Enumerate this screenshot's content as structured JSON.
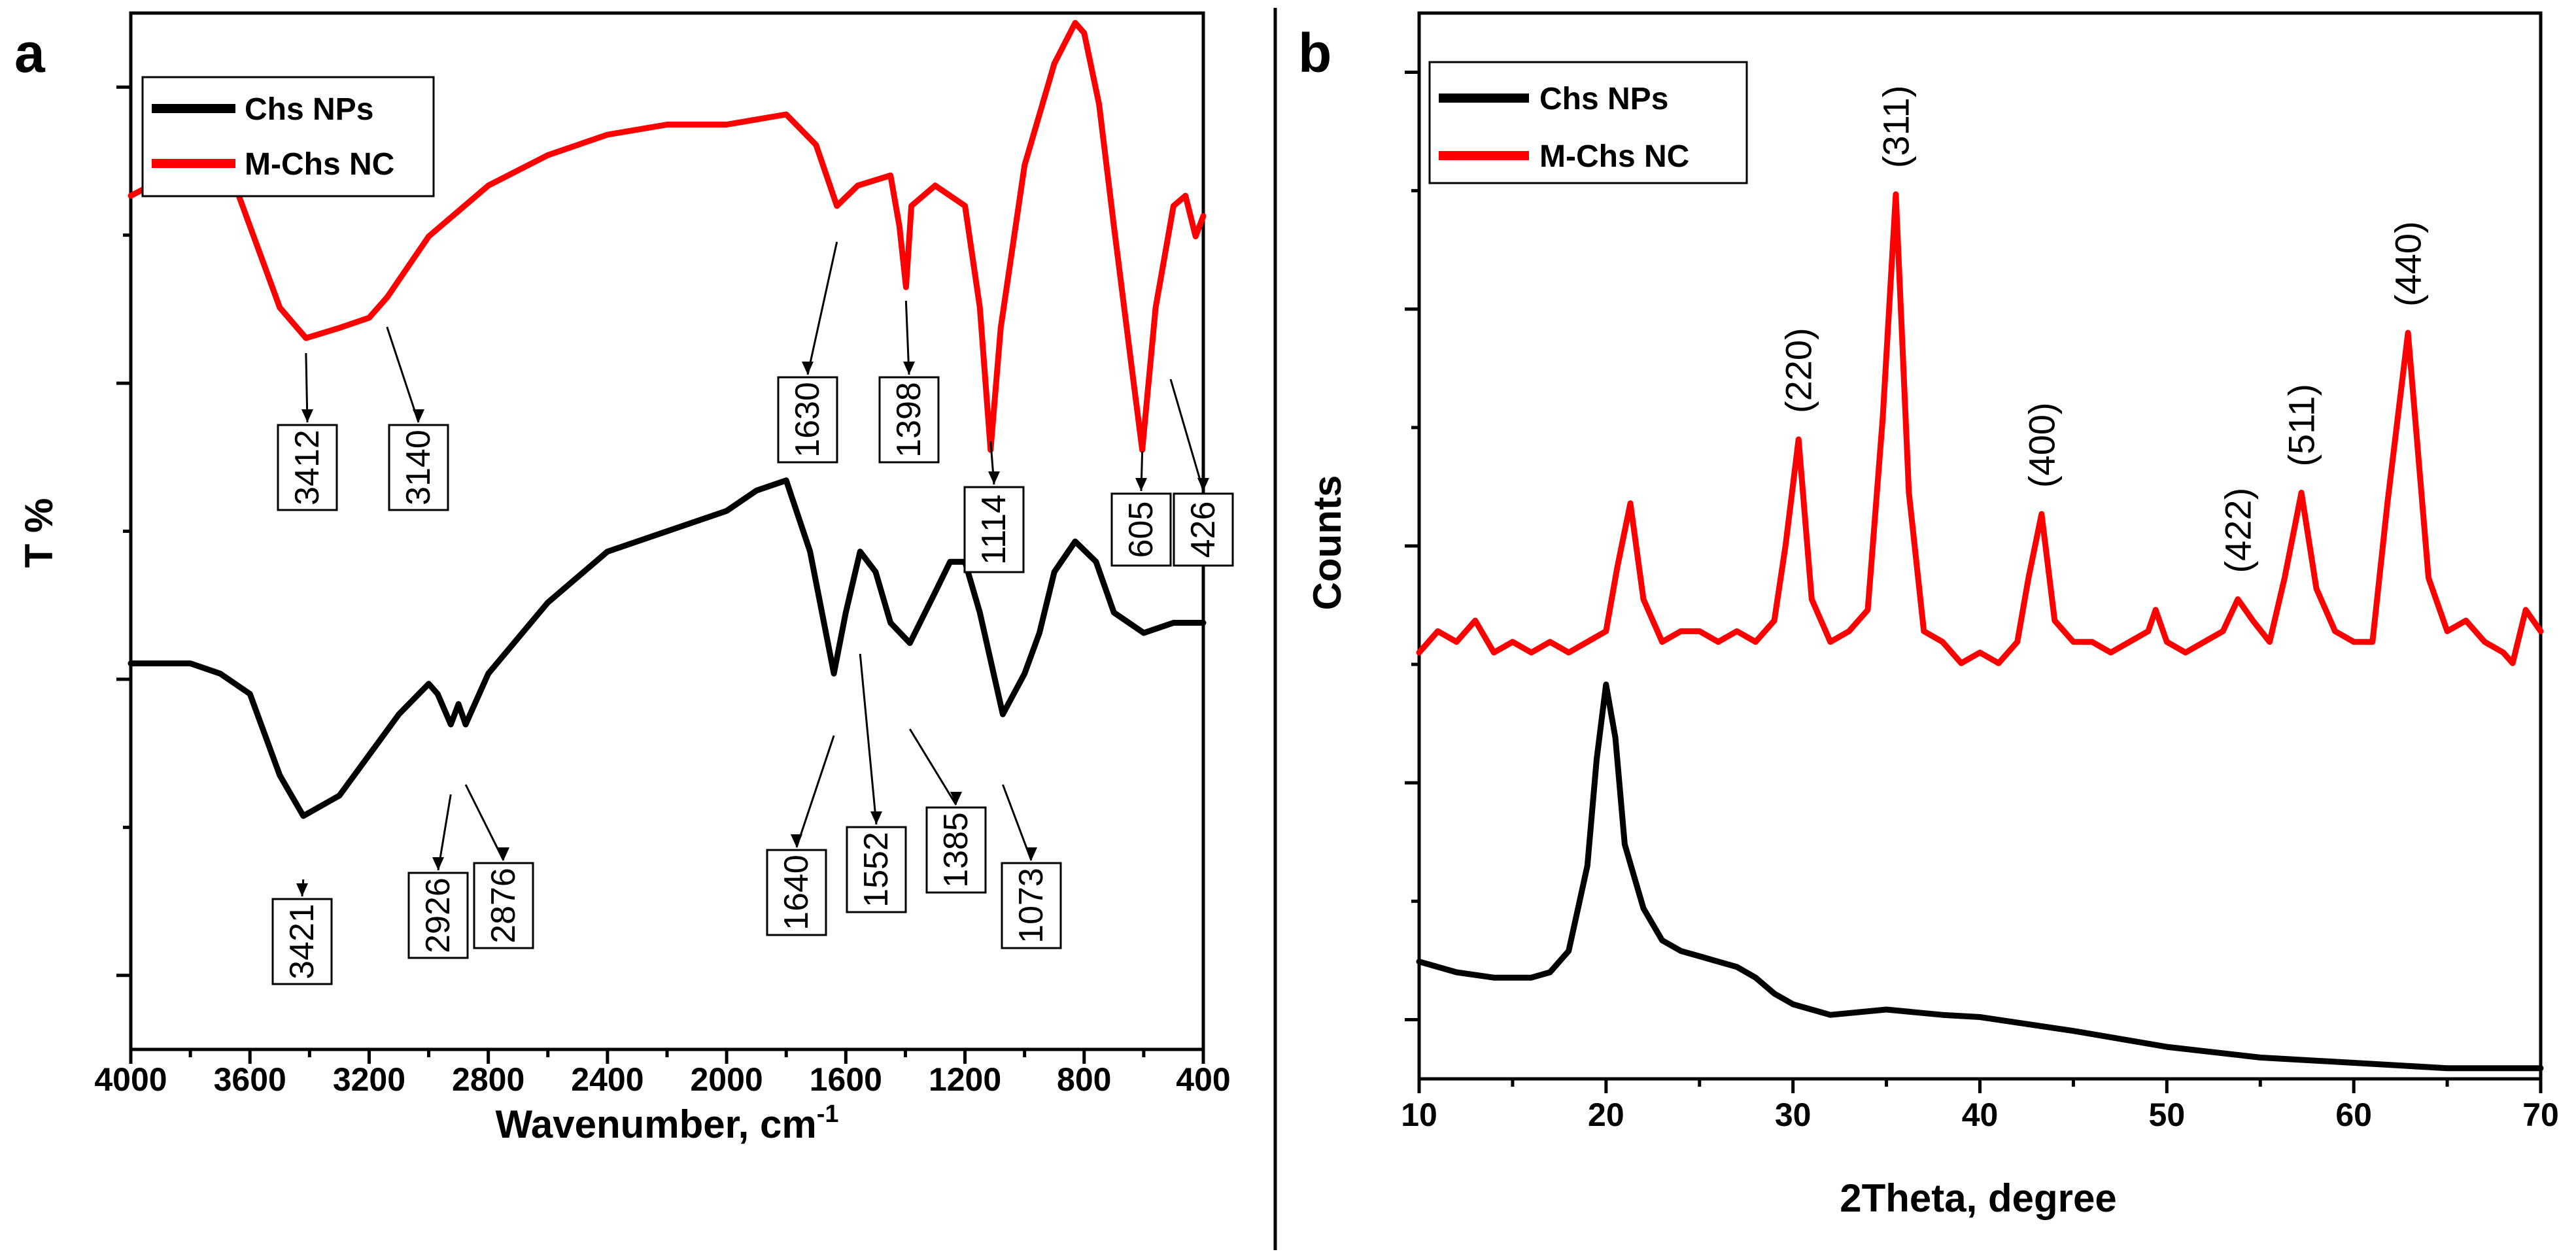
{
  "figure": {
    "divider": true
  },
  "panels": [
    {
      "letter": "a",
      "x_title": "Wavenumber, cm",
      "x_title_sup": "-1",
      "y_title": "T %",
      "xlim": [
        4000,
        400
      ],
      "xticks": [
        "4000",
        "3600",
        "3200",
        "2800",
        "2400",
        "2000",
        "1600",
        "1200",
        "800",
        "400"
      ],
      "legend": [
        {
          "label": "Chs NPs",
          "color": "#000000"
        },
        {
          "label": "M-Chs NC",
          "color": "#ff0000"
        }
      ]
    },
    {
      "letter": "b",
      "x_title": "2Theta, degree",
      "y_title": "Counts",
      "xlim": [
        10,
        70
      ],
      "xticks": [
        "10",
        "20",
        "30",
        "40",
        "50",
        "60",
        "70"
      ],
      "legend": [
        {
          "label": "Chs NPs",
          "color": "#000000"
        },
        {
          "label": "M-Chs NC",
          "color": "#ff0000"
        }
      ]
    }
  ],
  "chart_data": [
    {
      "type": "line",
      "title": "",
      "xlabel": "Wavenumber, cm-1",
      "ylabel": "T %",
      "xlim": [
        4000,
        400
      ],
      "ylim": [
        0,
        100
      ],
      "y_ticklabels": false,
      "series": [
        {
          "name": "M-Chs NC",
          "color": "#ff0000",
          "x": [
            4000,
            3800,
            3700,
            3600,
            3500,
            3412,
            3300,
            3200,
            3140,
            3000,
            2800,
            2600,
            2400,
            2200,
            2000,
            1800,
            1700,
            1630,
            1560,
            1450,
            1420,
            1398,
            1380,
            1300,
            1200,
            1150,
            1114,
            1080,
            1000,
            900,
            830,
            800,
            750,
            700,
            640,
            605,
            560,
            500,
            460,
            426,
            400
          ],
          "y": [
            83,
            86,
            88,
            80,
            72,
            69,
            70,
            71,
            73,
            79,
            84,
            87,
            89,
            90,
            90,
            91,
            88,
            82,
            84,
            85,
            80,
            74,
            82,
            84,
            82,
            72,
            58,
            70,
            86,
            96,
            100,
            99,
            92,
            80,
            66,
            58,
            72,
            82,
            83,
            79,
            81
          ]
        },
        {
          "name": "Chs NPs",
          "color": "#000000",
          "x": [
            4000,
            3800,
            3700,
            3600,
            3500,
            3421,
            3300,
            3100,
            3000,
            2970,
            2926,
            2900,
            2876,
            2800,
            2600,
            2400,
            2200,
            2000,
            1900,
            1800,
            1720,
            1640,
            1600,
            1552,
            1500,
            1450,
            1385,
            1300,
            1250,
            1200,
            1150,
            1073,
            1000,
            950,
            900,
            830,
            760,
            700,
            600,
            500,
            400
          ],
          "y": [
            37,
            37,
            36,
            34,
            26,
            22,
            24,
            32,
            35,
            34,
            31,
            33,
            31,
            36,
            43,
            48,
            50,
            52,
            54,
            55,
            48,
            36,
            42,
            48,
            46,
            41,
            39,
            44,
            47,
            47,
            42,
            32,
            36,
            40,
            46,
            49,
            47,
            42,
            40,
            41,
            41
          ]
        }
      ],
      "annotations": [
        {
          "label": "3412",
          "x": 3412,
          "series": "M-Chs NC"
        },
        {
          "label": "3140",
          "x": 3140,
          "series": "M-Chs NC"
        },
        {
          "label": "1630",
          "x": 1630,
          "series": "M-Chs NC"
        },
        {
          "label": "1398",
          "x": 1398,
          "series": "M-Chs NC"
        },
        {
          "label": "1114",
          "x": 1114,
          "series": "M-Chs NC"
        },
        {
          "label": "605",
          "x": 605,
          "series": "M-Chs NC"
        },
        {
          "label": "426",
          "x": 426,
          "series": "M-Chs NC"
        },
        {
          "label": "3421",
          "x": 3421,
          "series": "Chs NPs"
        },
        {
          "label": "2926",
          "x": 2926,
          "series": "Chs NPs"
        },
        {
          "label": "2876",
          "x": 2876,
          "series": "Chs NPs"
        },
        {
          "label": "1640",
          "x": 1640,
          "series": "Chs NPs"
        },
        {
          "label": "1552",
          "x": 1552,
          "series": "Chs NPs"
        },
        {
          "label": "1385",
          "x": 1385,
          "series": "Chs NPs"
        },
        {
          "label": "1073",
          "x": 1073,
          "series": "Chs NPs"
        }
      ]
    },
    {
      "type": "line",
      "title": "",
      "xlabel": "2Theta, degree",
      "ylabel": "Counts",
      "xlim": [
        10,
        70
      ],
      "ylim": [
        0,
        100
      ],
      "y_ticklabels": false,
      "series": [
        {
          "name": "M-Chs NC",
          "color": "#ff0000",
          "x": [
            10,
            11,
            12,
            13,
            14,
            15,
            16,
            17,
            18,
            19,
            20,
            20.6,
            21.3,
            22,
            23,
            24,
            25,
            26,
            27,
            28,
            29,
            29.6,
            30.3,
            31,
            32,
            33,
            34,
            34.8,
            35.5,
            36.2,
            37,
            38,
            39,
            40,
            41,
            42,
            42.6,
            43.3,
            44,
            45,
            46,
            47,
            48,
            49,
            49.4,
            50,
            51,
            52,
            53,
            53.8,
            54.6,
            55.5,
            56.3,
            57.2,
            58,
            59,
            60,
            61,
            61.8,
            62.9,
            64,
            65,
            66,
            67,
            68,
            68.5,
            69.2,
            70
          ],
          "y": [
            40,
            42,
            41,
            43,
            40,
            41,
            40,
            41,
            40,
            41,
            42,
            48,
            54,
            45,
            41,
            42,
            42,
            41,
            42,
            41,
            43,
            50,
            60,
            45,
            41,
            42,
            44,
            62,
            83,
            55,
            42,
            41,
            39,
            40,
            39,
            41,
            47,
            53,
            43,
            41,
            41,
            40,
            41,
            42,
            44,
            41,
            40,
            41,
            42,
            45,
            43,
            41,
            47,
            55,
            46,
            42,
            41,
            41,
            54,
            70,
            47,
            42,
            43,
            41,
            40,
            39,
            44,
            42
          ]
        },
        {
          "name": "Chs NPs",
          "color": "#000000",
          "x": [
            10,
            12,
            14,
            16,
            17,
            18,
            19,
            19.5,
            20,
            20.5,
            21,
            22,
            23,
            24,
            25,
            26,
            27,
            28,
            29,
            30,
            32,
            35,
            38,
            40,
            45,
            50,
            55,
            60,
            65,
            70
          ],
          "y": [
            11,
            10,
            9.5,
            9.5,
            10,
            12,
            20,
            30,
            37,
            32,
            22,
            16,
            13,
            12,
            11.5,
            11,
            10.5,
            9.5,
            8,
            7,
            6,
            6.5,
            6,
            5.8,
            4.5,
            3,
            2,
            1.5,
            1,
            1
          ]
        }
      ],
      "annotations": [
        {
          "label": "(220)",
          "x": 30.3,
          "series": "M-Chs NC"
        },
        {
          "label": "(311)",
          "x": 35.5,
          "series": "M-Chs NC"
        },
        {
          "label": "(400)",
          "x": 43.3,
          "series": "M-Chs NC"
        },
        {
          "label": "(422)",
          "x": 53.8,
          "series": "M-Chs NC"
        },
        {
          "label": "(511)",
          "x": 57.2,
          "series": "M-Chs NC"
        },
        {
          "label": "(440)",
          "x": 62.9,
          "series": "M-Chs NC"
        }
      ]
    }
  ]
}
